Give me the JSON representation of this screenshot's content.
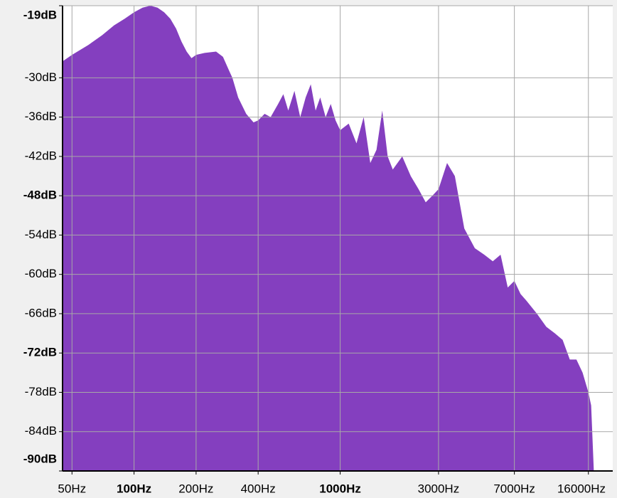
{
  "chart_data": {
    "type": "area",
    "x": [
      45,
      50,
      60,
      70,
      80,
      90,
      100,
      110,
      120,
      130,
      140,
      150,
      160,
      170,
      180,
      190,
      200,
      220,
      250,
      270,
      290,
      300,
      320,
      350,
      380,
      400,
      430,
      460,
      500,
      530,
      560,
      600,
      640,
      680,
      720,
      760,
      800,
      850,
      900,
      950,
      1000,
      1100,
      1200,
      1300,
      1400,
      1500,
      1600,
      1700,
      1800,
      2000,
      2200,
      2400,
      2600,
      2800,
      3000,
      3300,
      3600,
      4000,
      4500,
      5000,
      5500,
      6000,
      6500,
      7000,
      7500,
      8000,
      9000,
      10000,
      11000,
      12000,
      13000,
      14000,
      15000,
      16000,
      16500,
      17000
    ],
    "values": [
      -27.5,
      -26.5,
      -25,
      -23.5,
      -22,
      -21,
      -20,
      -19.3,
      -19,
      -19.3,
      -20,
      -21,
      -22.5,
      -24.5,
      -26,
      -27,
      -26.5,
      -26.2,
      -26,
      -26.8,
      -29,
      -30,
      -33,
      -35.5,
      -36.8,
      -36.5,
      -35.5,
      -36,
      -34,
      -32.5,
      -35,
      -32,
      -36,
      -33,
      -31,
      -35,
      -33,
      -36,
      -34,
      -36.5,
      -38,
      -37,
      -40,
      -36,
      -43,
      -41,
      -35,
      -42,
      -44,
      -42,
      -45,
      -47,
      -49,
      -48,
      -47,
      -43,
      -45,
      -53,
      -56,
      -57,
      -58,
      -57,
      -62,
      -61,
      -63,
      -64,
      -66,
      -68,
      -69,
      -70,
      -73,
      -73,
      -75,
      -78,
      -80,
      -90
    ],
    "color": "#843fbf",
    "xscale": "log",
    "xlim": [
      45,
      21000
    ],
    "ylim": [
      -90,
      -19
    ],
    "xticks": [
      {
        "value": 50,
        "label": "50Hz"
      },
      {
        "value": 100,
        "label": "100Hz",
        "bold": true
      },
      {
        "value": 200,
        "label": "200Hz"
      },
      {
        "value": 400,
        "label": "400Hz"
      },
      {
        "value": 1000,
        "label": "1000Hz",
        "bold": true
      },
      {
        "value": 3000,
        "label": "3000Hz"
      },
      {
        "value": 7000,
        "label": "7000Hz"
      },
      {
        "value": 16000,
        "label": "16000Hz"
      }
    ],
    "yticks": [
      {
        "value": -19,
        "label": "-19dB",
        "bold": true
      },
      {
        "value": -30,
        "label": "-30dB"
      },
      {
        "value": -36,
        "label": "-36dB"
      },
      {
        "value": -42,
        "label": "-42dB"
      },
      {
        "value": -48,
        "label": "-48dB",
        "bold": true
      },
      {
        "value": -54,
        "label": "-54dB"
      },
      {
        "value": -60,
        "label": "-60dB"
      },
      {
        "value": -66,
        "label": "-66dB"
      },
      {
        "value": -72,
        "label": "-72dB",
        "bold": true
      },
      {
        "value": -78,
        "label": "-78dB"
      },
      {
        "value": -84,
        "label": "-84dB"
      },
      {
        "value": -90,
        "label": "-90dB",
        "bold": true
      }
    ],
    "grid": true
  }
}
